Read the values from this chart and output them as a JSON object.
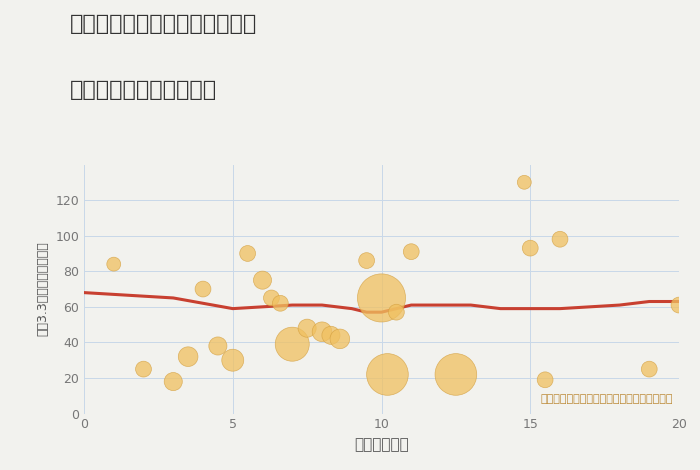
{
  "title_line1": "岐阜県各務原市蘇原古市場町の",
  "title_line2": "駅距離別中古戸建て価格",
  "xlabel": "駅距離（分）",
  "ylabel": "坪（3.3㎡）単価（万円）",
  "annotation": "円の大きさは、取引のあった物件面積を示す",
  "background_color": "#f2f2ee",
  "bubble_color": "#f0c060",
  "bubble_alpha": 0.75,
  "bubble_edge_color": "#d4a040",
  "line_color": "#c84030",
  "line_width": 2.2,
  "grid_color": "#c8d8e8",
  "xlim": [
    0,
    20
  ],
  "ylim": [
    0,
    140
  ],
  "yticks": [
    0,
    20,
    40,
    60,
    80,
    100,
    120
  ],
  "xticks": [
    0,
    5,
    10,
    15,
    20
  ],
  "scatter_x": [
    1.0,
    2.0,
    3.0,
    3.5,
    4.0,
    4.5,
    5.0,
    5.5,
    6.0,
    6.3,
    6.6,
    7.0,
    7.5,
    8.0,
    8.3,
    8.6,
    9.5,
    10.0,
    10.2,
    10.5,
    11.0,
    12.5,
    14.8,
    15.0,
    15.5,
    16.0,
    19.0,
    20.0
  ],
  "scatter_y": [
    84,
    25,
    18,
    32,
    70,
    38,
    30,
    90,
    75,
    65,
    62,
    39,
    48,
    46,
    44,
    42,
    86,
    65,
    22,
    57,
    91,
    22,
    130,
    93,
    19,
    98,
    25,
    61
  ],
  "scatter_size": [
    100,
    130,
    170,
    200,
    130,
    170,
    250,
    130,
    170,
    130,
    130,
    600,
    170,
    200,
    170,
    200,
    130,
    1200,
    900,
    130,
    130,
    900,
    100,
    130,
    130,
    130,
    130,
    130
  ],
  "trend_x": [
    0,
    1,
    2,
    3,
    4,
    5,
    6,
    7,
    8,
    9,
    9.5,
    10,
    11,
    12,
    13,
    14,
    15,
    16,
    17,
    18,
    19,
    20
  ],
  "trend_y": [
    68,
    67,
    66,
    65,
    62,
    59,
    60,
    61,
    61,
    59,
    57,
    57,
    61,
    61,
    61,
    59,
    59,
    59,
    60,
    61,
    63,
    63
  ]
}
